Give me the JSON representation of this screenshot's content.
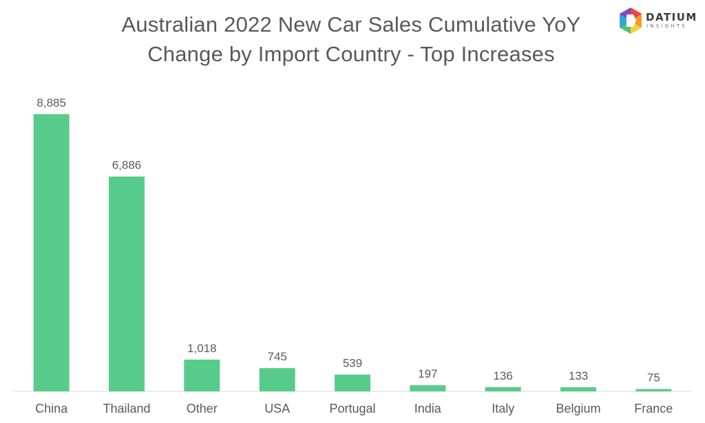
{
  "title": {
    "line1": "Australian 2022 New Car Sales Cumulative YoY",
    "line2": "Change by Import Country - Top Increases"
  },
  "logo": {
    "name": "DATIUM",
    "sub": "INSIGHTS"
  },
  "colors": {
    "bar": "#57cc8a",
    "text": "#595959",
    "axis": "#d9d9d9"
  },
  "chart_data": {
    "type": "bar",
    "title": "Australian 2022 New Car Sales Cumulative YoY Change by Import Country - Top Increases",
    "categories": [
      "China",
      "Thailand",
      "Other",
      "USA",
      "Portugal",
      "India",
      "Italy",
      "Belgium",
      "France"
    ],
    "values": [
      8885,
      6886,
      1018,
      745,
      539,
      197,
      136,
      133,
      75
    ],
    "value_labels": [
      "8,885",
      "6,886",
      "1,018",
      "745",
      "539",
      "197",
      "136",
      "133",
      "75"
    ],
    "xlabel": "",
    "ylabel": "",
    "grid": false,
    "legend": "none"
  }
}
